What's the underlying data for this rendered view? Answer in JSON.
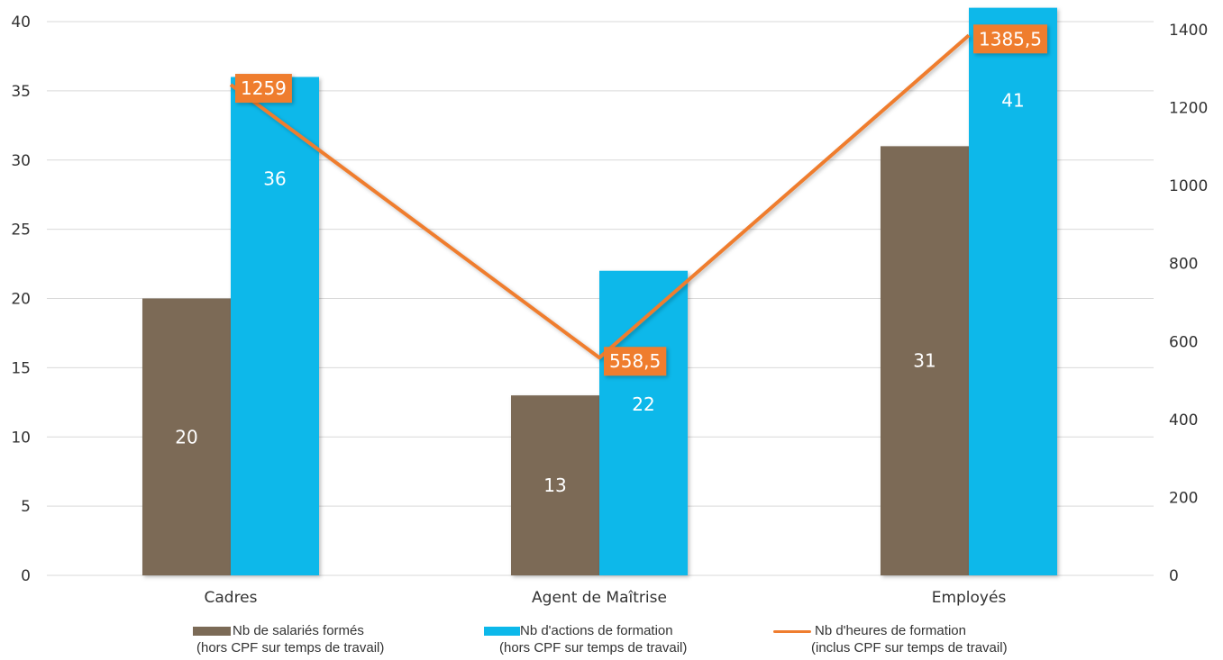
{
  "chart_data": {
    "type": "bar",
    "categories": [
      "Cadres",
      "Agent de Maîtrise",
      "Employés"
    ],
    "series": [
      {
        "name": "Nb de salariés formés",
        "name_detail": "(hors CPF sur temps de travail)",
        "type": "bar",
        "axis": "left",
        "color": "#7b6a56",
        "values": [
          20,
          13,
          31
        ],
        "labels": [
          "20",
          "13",
          "31"
        ]
      },
      {
        "name": "Nb d'actions de formation",
        "name_detail": "(hors CPF sur temps de travail)",
        "type": "bar",
        "axis": "left",
        "color": "#0cb8ea",
        "values": [
          36,
          22,
          41
        ],
        "labels": [
          "36",
          "22",
          "41"
        ]
      },
      {
        "name": "Nb d'heures de formation",
        "name_detail": "(inclus CPF sur temps de travail)",
        "type": "line",
        "axis": "right",
        "color": "#ef7d2f",
        "values": [
          1259,
          558.5,
          1385.5
        ],
        "labels": [
          "1259",
          "558,5",
          "1385,5"
        ]
      }
    ],
    "y_left": {
      "range": [
        0,
        40
      ],
      "ticks": [
        "0",
        "5",
        "10",
        "15",
        "20",
        "25",
        "30",
        "35",
        "40"
      ]
    },
    "y_right": {
      "range": [
        0,
        1400
      ],
      "ticks": [
        "0",
        "200",
        "400",
        "600",
        "800",
        "1000",
        "1200",
        "1400"
      ]
    },
    "grid": true,
    "legend_position": "bottom",
    "title": "",
    "xlabel": "",
    "ylabel": ""
  }
}
